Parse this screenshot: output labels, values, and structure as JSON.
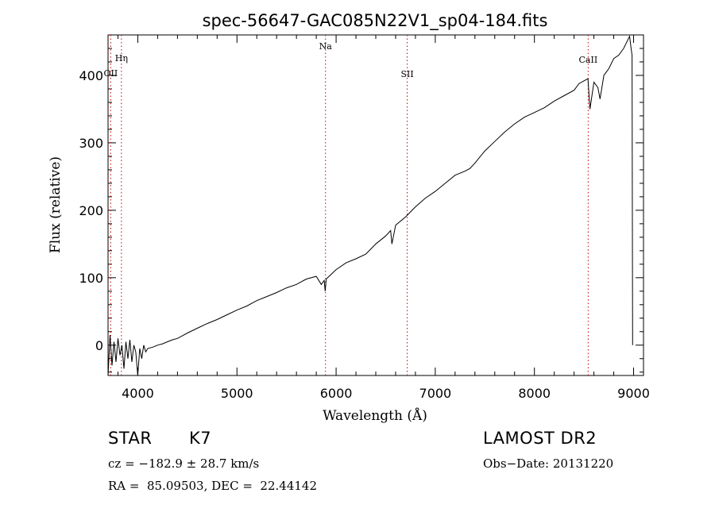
{
  "chart_data": {
    "type": "line",
    "title": "spec-56647-GAC085N22V1_sp04-184.fits",
    "xlabel": "Wavelength (Å)",
    "ylabel": "Flux (relative)",
    "xlim": [
      3700,
      9100
    ],
    "ylim": [
      -45,
      460
    ],
    "xticks": [
      4000,
      5000,
      6000,
      7000,
      8000,
      9000
    ],
    "yticks": [
      0,
      100,
      200,
      300,
      400
    ],
    "grid": false,
    "line_color": "#000000",
    "marker_color": "#cc0000",
    "series": [
      {
        "x": [
          3700,
          3720,
          3740,
          3760,
          3780,
          3800,
          3820,
          3840,
          3860,
          3880,
          3900,
          3920,
          3940,
          3960,
          3980,
          4000,
          4020,
          4040,
          4060,
          4080,
          4100,
          4150,
          4200,
          4250,
          4300,
          4350,
          4400,
          4450,
          4500,
          4600,
          4700,
          4800,
          4900,
          5000,
          5100,
          5200,
          5300,
          5400,
          5500,
          5600,
          5700,
          5800,
          5850,
          5880,
          5890,
          5900,
          5950,
          6000,
          6100,
          6200,
          6300,
          6400,
          6500,
          6550,
          6563,
          6600,
          6700,
          6800,
          6900,
          7000,
          7100,
          7200,
          7300,
          7350,
          7400,
          7500,
          7600,
          7700,
          7800,
          7900,
          8000,
          8100,
          8200,
          8300,
          8400,
          8450,
          8500,
          8540,
          8560,
          8600,
          8640,
          8662,
          8700,
          8750,
          8800,
          8850,
          8900,
          8940,
          8960,
          8975,
          8985,
          8990
        ],
        "y": [
          -45,
          15,
          -30,
          5,
          -25,
          10,
          -15,
          0,
          -35,
          5,
          -20,
          8,
          -25,
          0,
          -10,
          -45,
          -5,
          -20,
          0,
          -10,
          -5,
          -3,
          0,
          2,
          5,
          8,
          10,
          14,
          18,
          25,
          32,
          38,
          45,
          52,
          58,
          66,
          72,
          78,
          85,
          90,
          98,
          102,
          90,
          96,
          80,
          98,
          105,
          112,
          122,
          128,
          135,
          150,
          162,
          170,
          150,
          178,
          190,
          205,
          218,
          228,
          240,
          252,
          258,
          262,
          270,
          288,
          302,
          316,
          328,
          338,
          345,
          352,
          362,
          370,
          378,
          388,
          392,
          395,
          350,
          390,
          382,
          365,
          400,
          410,
          425,
          430,
          440,
          452,
          458,
          440,
          430,
          0
        ]
      }
    ]
  },
  "lines": [
    {
      "label": "Hη",
      "wavelength": 3835
    },
    {
      "label": "OII",
      "wavelength": 3727
    },
    {
      "label": "Na",
      "wavelength": 5893
    },
    {
      "label": "SII",
      "wavelength": 6717
    },
    {
      "label": "CaII",
      "wavelength": 8542
    }
  ],
  "info": {
    "object_class": "STAR",
    "subclass": "K7",
    "cz": "cz = −182.9 ± 28.7 km/s",
    "coords": "RA =  85.09503, DEC =  22.44142",
    "survey": "LAMOST DR2",
    "obs_date": "Obs−Date: 20131220"
  }
}
